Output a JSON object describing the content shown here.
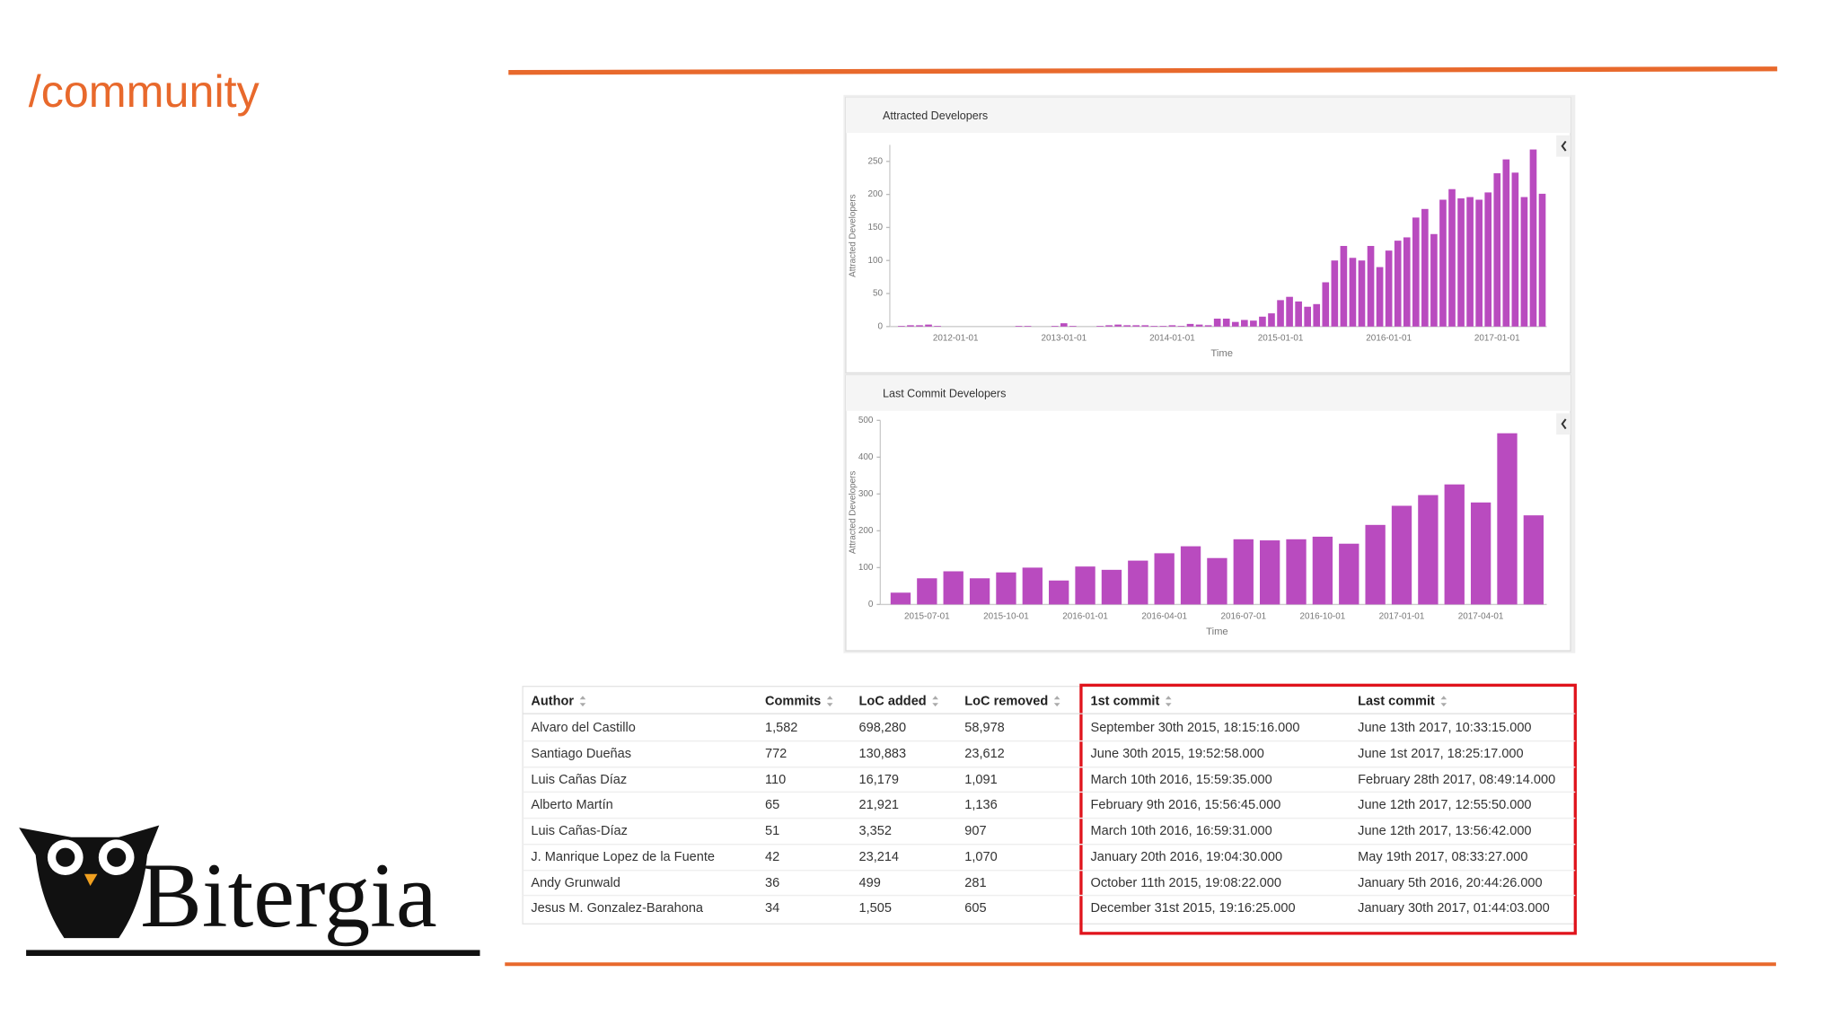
{
  "title": "/community",
  "logo": "Bitergia",
  "chart_data": [
    {
      "type": "bar",
      "title": "Attracted Developers",
      "xlabel": "Time",
      "ylabel": "Attracted Developers",
      "color": "#b94bbf",
      "categories": [
        null,
        null,
        null,
        null,
        null,
        null,
        "2012-01-01",
        null,
        null,
        null,
        null,
        null,
        null,
        null,
        null,
        null,
        null,
        null,
        "2013-01-01",
        null,
        null,
        null,
        null,
        null,
        null,
        null,
        null,
        null,
        null,
        null,
        "2014-01-01",
        null,
        null,
        null,
        null,
        null,
        null,
        null,
        null,
        null,
        null,
        null,
        "2015-01-01",
        null,
        null,
        null,
        null,
        null,
        null,
        null,
        null,
        null,
        null,
        null,
        "2016-01-01",
        null,
        null,
        null,
        null,
        null,
        null,
        null,
        null,
        null,
        null,
        null,
        "2017-01-01",
        null,
        null,
        null,
        null,
        null
      ],
      "values": [
        1,
        2,
        2,
        3,
        1,
        0,
        0,
        0,
        0,
        0,
        0,
        0,
        0,
        1,
        1,
        0,
        0,
        1,
        5,
        1,
        0,
        0,
        1,
        2,
        3,
        2,
        2,
        2,
        1,
        1,
        2,
        1,
        4,
        3,
        2,
        12,
        12,
        7,
        10,
        9,
        15,
        20,
        40,
        45,
        38,
        30,
        34,
        67,
        100,
        122,
        104,
        100,
        122,
        90,
        115,
        130,
        135,
        165,
        178,
        140,
        192,
        208,
        194,
        196,
        192,
        203,
        232,
        253,
        233,
        196,
        268,
        201
      ],
      "ylim": [
        0,
        275
      ],
      "yticks": [
        0,
        50,
        100,
        150,
        200,
        250
      ]
    },
    {
      "type": "bar",
      "title": "Last Commit Developers",
      "xlabel": "Time",
      "ylabel": "Attracted Developers",
      "color": "#b94bbf",
      "categories": [
        null,
        "2015-07-01",
        null,
        null,
        "2015-10-01",
        null,
        null,
        "2016-01-01",
        null,
        null,
        "2016-04-01",
        null,
        null,
        "2016-07-01",
        null,
        null,
        "2016-10-01",
        null,
        null,
        "2017-01-01",
        null,
        null,
        "2017-04-01",
        null,
        null
      ],
      "values": [
        32,
        71,
        90,
        71,
        87,
        100,
        65,
        103,
        94,
        119,
        139,
        158,
        126,
        177,
        174,
        177,
        184,
        165,
        216,
        268,
        297,
        326,
        277,
        465,
        242
      ],
      "ylim": [
        0,
        500
      ],
      "yticks": [
        0,
        100,
        200,
        300,
        400,
        500
      ]
    }
  ],
  "table": {
    "columns": [
      "Author",
      "Commits",
      "LoC added",
      "LoC removed",
      "1st commit",
      "Last commit"
    ],
    "rows": [
      [
        "Alvaro del Castillo",
        "1,582",
        "698,280",
        "58,978",
        "September 30th 2015, 18:15:16.000",
        "June 13th 2017, 10:33:15.000"
      ],
      [
        "Santiago Dueñas",
        "772",
        "130,883",
        "23,612",
        "June 30th 2015, 19:52:58.000",
        "June 1st 2017, 18:25:17.000"
      ],
      [
        "Luis Cañas Díaz",
        "110",
        "16,179",
        "1,091",
        "March 10th 2016, 15:59:35.000",
        "February 28th 2017, 08:49:14.000"
      ],
      [
        "Alberto Martín",
        "65",
        "21,921",
        "1,136",
        "February 9th 2016, 15:56:45.000",
        "June 12th 2017, 12:55:50.000"
      ],
      [
        "Luis Cañas-Díaz",
        "51",
        "3,352",
        "907",
        "March 10th 2016, 16:59:31.000",
        "June 12th 2017, 13:56:42.000"
      ],
      [
        "J. Manrique Lopez de la Fuente",
        "42",
        "23,214",
        "1,070",
        "January 20th 2016, 19:04:30.000",
        "May 19th 2017, 08:33:27.000"
      ],
      [
        "Andy Grunwald",
        "36",
        "499",
        "281",
        "October 11th 2015, 19:08:22.000",
        "January 5th 2016, 20:44:26.000"
      ],
      [
        "Jesus M. Gonzalez-Barahona",
        "34",
        "1,505",
        "605",
        "December 31st 2015, 19:16:25.000",
        "January 30th 2017, 01:44:03.000"
      ]
    ]
  }
}
